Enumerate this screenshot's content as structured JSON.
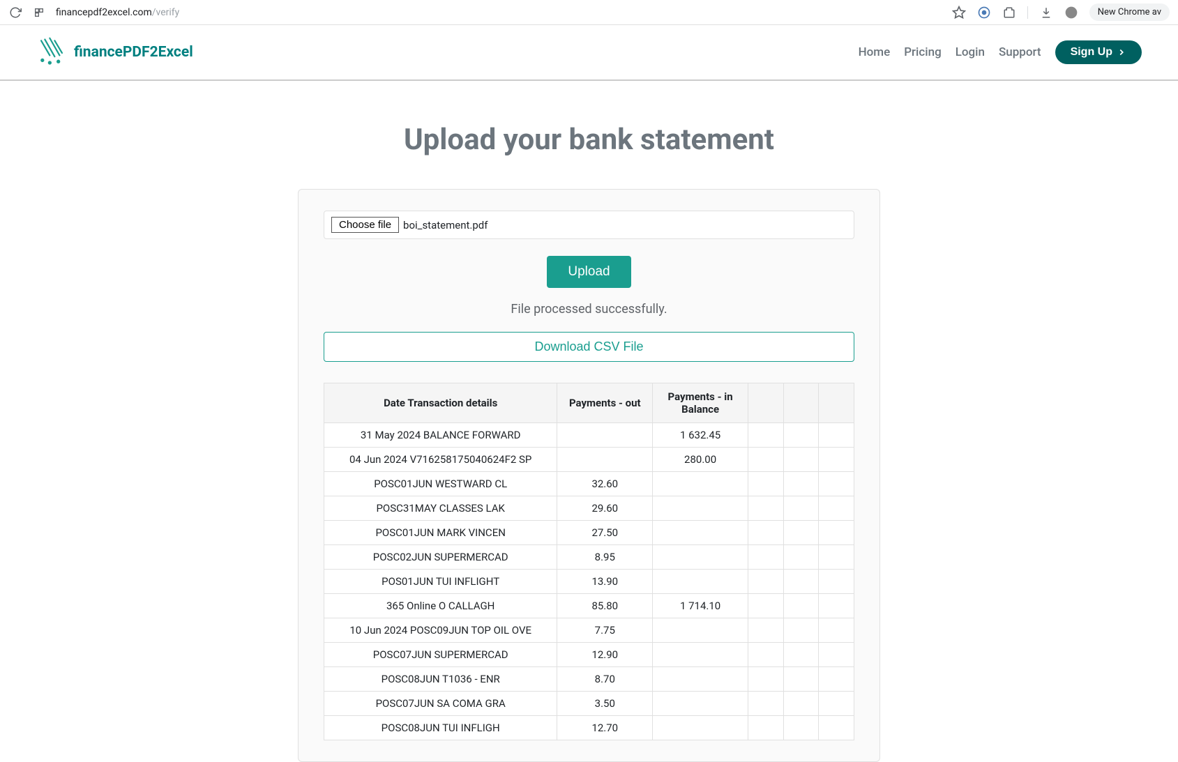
{
  "browser": {
    "url_host": "financepdf2excel.com",
    "url_path": "/verify",
    "availability": "New Chrome av"
  },
  "navbar": {
    "brand": "financePDF2Excel",
    "links": [
      "Home",
      "Pricing",
      "Login",
      "Support"
    ],
    "signup_label": "Sign Up"
  },
  "page": {
    "title": "Upload your bank statement",
    "choose_file_label": "Choose file",
    "selected_file": "boi_statement.pdf",
    "upload_label": "Upload",
    "status_message": "File processed successfully.",
    "download_label": "Download CSV File"
  },
  "table": {
    "columns": [
      "Date Transaction details",
      "Payments - out",
      "Payments - in Balance",
      "",
      "",
      ""
    ],
    "rows": [
      [
        "31 May 2024 BALANCE FORWARD",
        "",
        "1 632.45",
        "",
        "",
        ""
      ],
      [
        "04 Jun 2024 V716258175040624F2 SP",
        "",
        "280.00",
        "",
        "",
        ""
      ],
      [
        "POSC01JUN WESTWARD CL",
        "32.60",
        "",
        "",
        "",
        ""
      ],
      [
        "POSC31MAY CLASSES LAK",
        "29.60",
        "",
        "",
        "",
        ""
      ],
      [
        "POSC01JUN MARK VINCEN",
        "27.50",
        "",
        "",
        "",
        ""
      ],
      [
        "POSC02JUN SUPERMERCAD",
        "8.95",
        "",
        "",
        "",
        ""
      ],
      [
        "POS01JUN TUI INFLIGHT",
        "13.90",
        "",
        "",
        "",
        ""
      ],
      [
        "365 Online O CALLAGH",
        "85.80",
        "1 714.10",
        "",
        "",
        ""
      ],
      [
        "10 Jun 2024 POSC09JUN TOP OIL OVE",
        "7.75",
        "",
        "",
        "",
        ""
      ],
      [
        "POSC07JUN SUPERMERCAD",
        "12.90",
        "",
        "",
        "",
        ""
      ],
      [
        "POSC08JUN T1036 - ENR",
        "8.70",
        "",
        "",
        "",
        ""
      ],
      [
        "POSC07JUN SA COMA GRA",
        "3.50",
        "",
        "",
        "",
        ""
      ],
      [
        "POSC08JUN TUI INFLIGH",
        "12.70",
        "",
        "",
        "",
        ""
      ]
    ]
  },
  "colors": {
    "brand_teal": "#008080",
    "dark_teal": "#006060",
    "upload_teal": "#1a9e8f",
    "text_muted": "#6c757d",
    "border": "#e0e0e0"
  }
}
